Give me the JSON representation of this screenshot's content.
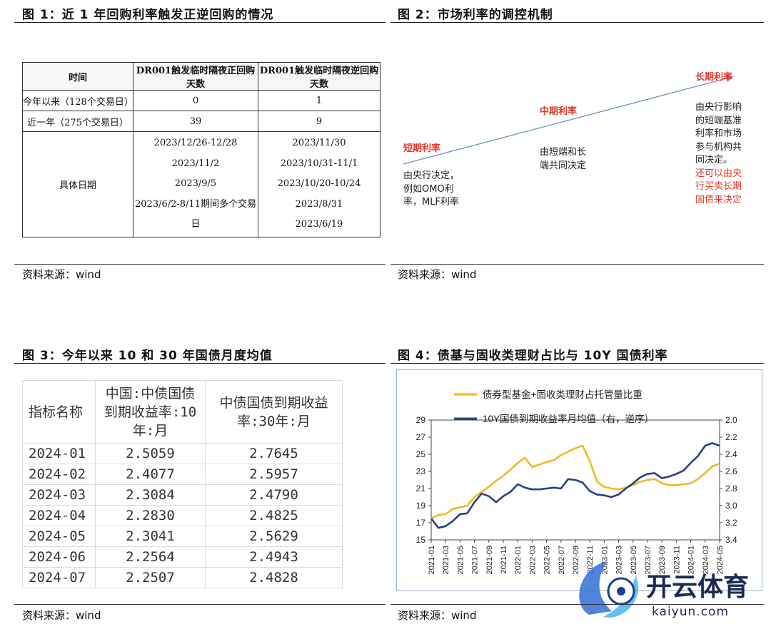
{
  "fig1": {
    "title": "图 1：近 1 年回购利率触发正逆回购的情况",
    "headers": [
      "时间",
      "DR001触发临时隔夜正回购天数",
      "DR001触发临时隔夜逆回购天数"
    ],
    "rows": [
      [
        "今年以来（128个交易日）",
        "0",
        "1"
      ],
      [
        "近一年（275个交易日）",
        "39",
        "9"
      ]
    ],
    "dates_label": "具体日期",
    "dates_repo": [
      "2023/12/26-12/28",
      "2023/11/2",
      "2023/9/5",
      "2023/6/2-8/11期间多个交易日"
    ],
    "dates_reverse": [
      "2023/11/30",
      "2023/10/31-11/1",
      "2023/10/20-10/24",
      "2023/8/31",
      "2023/6/19"
    ],
    "source": "资料来源：wind"
  },
  "fig2": {
    "title": "图 2：市场利率的调控机制",
    "short_label": "短期利率",
    "short_lines": [
      "由央行决定，",
      "例如OMO利",
      "率，MLF利率"
    ],
    "mid_label": "中期利率",
    "mid_lines": [
      "由短端和长",
      "端共同决定"
    ],
    "long_label": "长期利率",
    "long_lines": [
      "由央行影响",
      "的短端基准",
      "利率和市场",
      "参与机构共",
      "同决定。"
    ],
    "long_red_lines": [
      "还可以由央",
      "行买卖长期",
      "国债来决定"
    ],
    "source": "资料来源：wind"
  },
  "fig3": {
    "title": "图 3：今年以来 10 和 30 年国债月度均值",
    "header_col0": "指标名称",
    "header_col1_lines": [
      "中国:中债国债",
      "到期收益率:10",
      "年:月"
    ],
    "header_col2_lines": [
      "中债国债到期收益",
      "率:30年:月"
    ],
    "rows": [
      [
        "2024-01",
        "2.5059",
        "2.7645"
      ],
      [
        "2024-02",
        "2.4077",
        "2.5957"
      ],
      [
        "2024-03",
        "2.3084",
        "2.4790"
      ],
      [
        "2024-04",
        "2.2830",
        "2.4825"
      ],
      [
        "2024-05",
        "2.3041",
        "2.5629"
      ],
      [
        "2024-06",
        "2.2564",
        "2.4943"
      ],
      [
        "2024-07",
        "2.2507",
        "2.4828"
      ]
    ],
    "source": "资料来源：wind"
  },
  "fig4": {
    "title": "图 4：债基与固收类理财占比与 10Y 国债利率",
    "source": "资料来源：wind",
    "watermark_text": "开云体育",
    "watermark_url": "kaiyun.com",
    "colors": {
      "bond_fund": "#f2b628",
      "yield": "#2b3f88"
    }
  },
  "chart_data": {
    "type": "line",
    "title": "",
    "x": [
      "2021-01",
      "2021-02",
      "2021-03",
      "2021-04",
      "2021-05",
      "2021-06",
      "2021-07",
      "2021-08",
      "2021-09",
      "2021-10",
      "2021-11",
      "2021-12",
      "2022-01",
      "2022-02",
      "2022-03",
      "2022-04",
      "2022-05",
      "2022-06",
      "2022-07",
      "2022-08",
      "2022-09",
      "2022-10",
      "2022-11",
      "2022-12",
      "2023-01",
      "2023-02",
      "2023-03",
      "2023-04",
      "2023-05",
      "2023-06",
      "2023-07",
      "2023-08",
      "2023-09",
      "2023-10",
      "2023-11",
      "2023-12",
      "2024-01",
      "2024-02",
      "2024-03",
      "2024-04",
      "2024-05"
    ],
    "x_tick_labels": [
      "2021-01",
      "2021-03",
      "2021-05",
      "2021-07",
      "2021-09",
      "2021-11",
      "2022-01",
      "2022-03",
      "2022-05",
      "2022-07",
      "2022-09",
      "2022-11",
      "2023-01",
      "2023-03",
      "2023-05",
      "2023-07",
      "2023-09",
      "2023-11",
      "2024-01",
      "2024-03",
      "2024-05"
    ],
    "series": [
      {
        "name": "债券型基金+固收类理财占托管量比重",
        "axis": "left",
        "values": [
          17.5,
          17.9,
          18.0,
          18.6,
          18.8,
          19.0,
          20.0,
          20.6,
          21.2,
          21.9,
          22.5,
          23.2,
          24.0,
          24.6,
          23.5,
          23.8,
          24.1,
          24.3,
          24.9,
          25.3,
          25.7,
          26.0,
          24.2,
          21.8,
          21.2,
          21.0,
          20.9,
          21.1,
          21.4,
          21.8,
          22.0,
          22.1,
          21.6,
          21.4,
          21.4,
          21.5,
          21.6,
          22.1,
          22.8,
          23.6,
          23.9
        ]
      },
      {
        "name": "10Y国债到期收益率月均值（右，逆序）",
        "axis": "right",
        "values": [
          3.15,
          3.26,
          3.24,
          3.18,
          3.1,
          3.09,
          2.96,
          2.86,
          2.89,
          2.96,
          2.89,
          2.84,
          2.75,
          2.79,
          2.81,
          2.81,
          2.8,
          2.79,
          2.8,
          2.69,
          2.7,
          2.73,
          2.83,
          2.87,
          2.88,
          2.9,
          2.87,
          2.8,
          2.74,
          2.67,
          2.63,
          2.62,
          2.68,
          2.66,
          2.63,
          2.59,
          2.5,
          2.42,
          2.3,
          2.27,
          2.3
        ]
      }
    ],
    "y_left": {
      "min": 15,
      "max": 29,
      "ticks": [
        15,
        17,
        19,
        21,
        23,
        25,
        27,
        29
      ]
    },
    "y_right": {
      "min": 2.0,
      "max": 3.4,
      "inverted": true,
      "ticks": [
        "2.0",
        "2.2",
        "2.4",
        "2.6",
        "2.8",
        "3.0",
        "3.2",
        "3.4"
      ]
    },
    "legend_placement": "top"
  }
}
